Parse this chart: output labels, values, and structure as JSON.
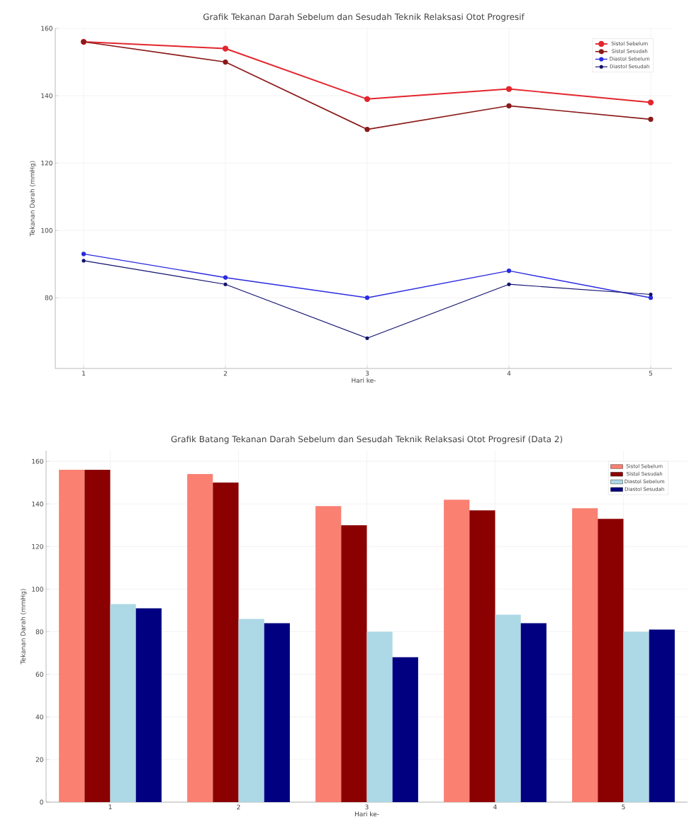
{
  "chart_data": [
    {
      "type": "line",
      "title": "Grafik Tekanan Darah Sebelum dan Sesudah Teknik Relaksasi Otot Progresif",
      "xlabel": "Hari ke-",
      "ylabel": "Tekanan Darah (mmHg)",
      "x": [
        1,
        2,
        3,
        4,
        5
      ],
      "xlim": [
        0.8,
        5.15
      ],
      "xticks": [
        1,
        2,
        3,
        4,
        5
      ],
      "ylim": [
        59,
        160
      ],
      "yticks": [
        80,
        100,
        120,
        140,
        160
      ],
      "grid": true,
      "legend": "top right",
      "marker": "circle",
      "series": [
        {
          "name": "Sistol Sebelum",
          "color": "#e3262e",
          "values": [
            156,
            154,
            139,
            142,
            138
          ]
        },
        {
          "name": "Sistol Sesudah",
          "color": "#8b1a1a",
          "values": [
            156,
            150,
            130,
            137,
            133
          ]
        },
        {
          "name": "Diastol Sebelum",
          "color": "#2a2ae0",
          "values": [
            93,
            86,
            80,
            88,
            80
          ]
        },
        {
          "name": "Diastol Sesudah",
          "color": "#10106e",
          "values": [
            91,
            84,
            68,
            84,
            81
          ]
        }
      ]
    },
    {
      "type": "bar",
      "title": "Grafik Batang Tekanan Darah Sebelum dan Sesudah Teknik Relaksasi Otot Progresif (Data 2)",
      "xlabel": "Hari ke-",
      "ylabel": "Tekanan Darah (mmHg)",
      "categories": [
        "1",
        "2",
        "3",
        "4",
        "5"
      ],
      "ylim": [
        0,
        165
      ],
      "yticks": [
        0,
        20,
        40,
        60,
        80,
        100,
        120,
        140,
        160
      ],
      "grid": true,
      "legend": "top right",
      "series": [
        {
          "name": "Sistol Sebelum",
          "color": "#fa8072",
          "values": [
            156,
            154,
            139,
            142,
            138
          ]
        },
        {
          "name": "Sistol Sesudah",
          "color": "#8b0000",
          "values": [
            156,
            150,
            130,
            137,
            133
          ]
        },
        {
          "name": "Diastol Sebelum",
          "color": "#add8e6",
          "values": [
            93,
            86,
            80,
            88,
            80
          ]
        },
        {
          "name": "Diastol Sesudah",
          "color": "#000080",
          "values": [
            91,
            84,
            68,
            84,
            81
          ]
        }
      ]
    }
  ]
}
